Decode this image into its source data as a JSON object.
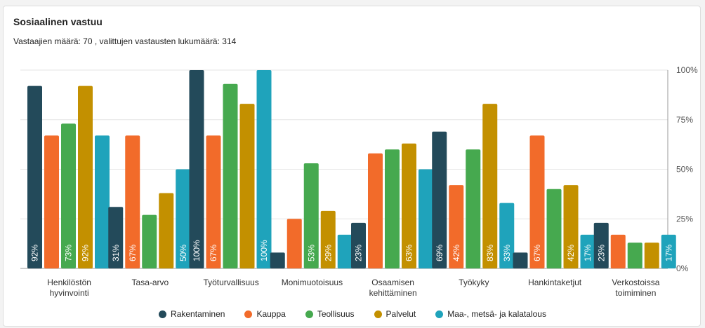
{
  "chart_data": {
    "type": "bar",
    "title": "Sosiaalinen vastuu",
    "subtitle": "Vastaajien määrä: 70 , valittujen vastausten lukumäärä: 314",
    "categories": [
      [
        "Henkilöstön",
        "hyvinvointi"
      ],
      [
        "Tasa-arvo"
      ],
      [
        "Työturvallisuus"
      ],
      [
        "Monimuotoisuus"
      ],
      [
        "Osaamisen",
        "kehittäminen"
      ],
      [
        "Työkyky"
      ],
      [
        "Hankintaketjut"
      ],
      [
        "Verkostoissa",
        "toimiminen"
      ]
    ],
    "series": [
      {
        "name": "Rakentaminen",
        "color": "#234a5a",
        "values": [
          92,
          31,
          100,
          8,
          23,
          69,
          8,
          23
        ]
      },
      {
        "name": "Kauppa",
        "color": "#f26b2a",
        "values": [
          67,
          67,
          67,
          25,
          58,
          42,
          67,
          17
        ]
      },
      {
        "name": "Teollisuus",
        "color": "#46a94f",
        "values": [
          73,
          27,
          93,
          53,
          60,
          60,
          40,
          13
        ]
      },
      {
        "name": "Palvelut",
        "color": "#c39000",
        "values": [
          92,
          38,
          83,
          29,
          63,
          83,
          42,
          13
        ]
      },
      {
        "name": "Maa-, metsä- ja kalatalous",
        "color": "#1fa3bb",
        "values": [
          67,
          50,
          100,
          17,
          50,
          33,
          17,
          17
        ]
      }
    ],
    "labels": [
      [
        "92%",
        null,
        "73%",
        "92%",
        null
      ],
      [
        "31%",
        "67%",
        null,
        null,
        "50%"
      ],
      [
        "100%",
        "67%",
        null,
        null,
        "100%"
      ],
      [
        null,
        null,
        "53%",
        "29%",
        null
      ],
      [
        "23%",
        null,
        null,
        "63%",
        null
      ],
      [
        "69%",
        "42%",
        null,
        "83%",
        "33%"
      ],
      [
        null,
        "67%",
        null,
        "42%",
        "17%"
      ],
      [
        "23%",
        null,
        null,
        null,
        "17%"
      ]
    ],
    "yticks": [
      "0%",
      "25%",
      "50%",
      "75%",
      "100%"
    ],
    "ylim": [
      0,
      100
    ],
    "legend_position": "bottom"
  }
}
